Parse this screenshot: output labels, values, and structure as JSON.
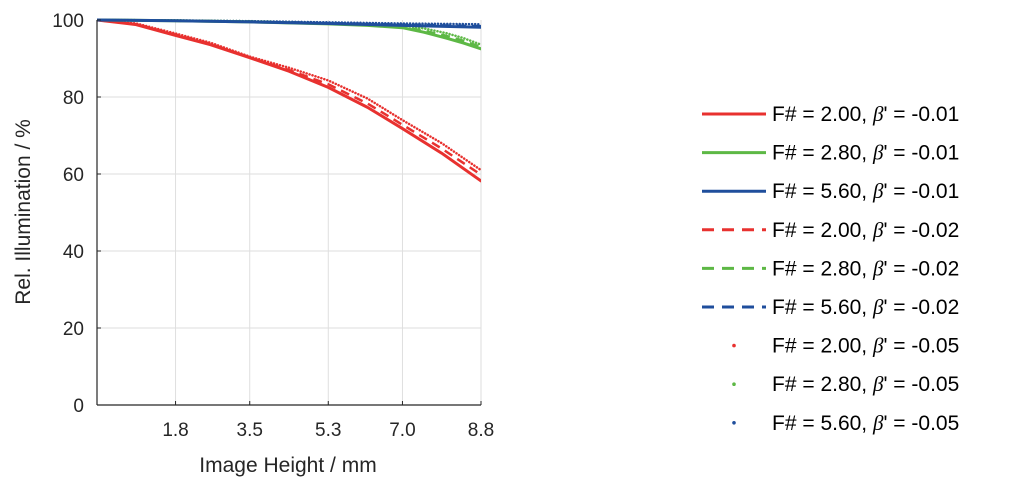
{
  "chart_data": {
    "type": "line",
    "xlabel": "Image Height / mm",
    "ylabel": "Rel. Illumination / %",
    "xlim": [
      0,
      8.8
    ],
    "ylim": [
      0,
      100
    ],
    "x_ticks": [
      1.8,
      3.5,
      5.3,
      7.0,
      8.8
    ],
    "x_tick_labels": [
      "1.8",
      "3.5",
      "5.3",
      "7.0",
      "8.8"
    ],
    "y_ticks": [
      0,
      20,
      40,
      60,
      80,
      100
    ],
    "y_tick_labels": [
      "0",
      "20",
      "40",
      "60",
      "80",
      "100"
    ],
    "grid": true,
    "legend_position": "right",
    "colors": {
      "red": "#e8312f",
      "green": "#5db845",
      "blue": "#1f4e9c"
    },
    "series": [
      {
        "name": "F# = 2.00, β' = -0.01",
        "f_label": "F# = 2.00,",
        "beta_label": "' = -0.01",
        "color": "#e8312f",
        "style": "solid",
        "x": [
          0,
          0.9,
          1.8,
          2.6,
          3.5,
          4.4,
          5.3,
          6.2,
          7.0,
          7.9,
          8.8
        ],
        "y": [
          100,
          98.8,
          96.0,
          93.6,
          90.2,
          86.7,
          82.5,
          77.3,
          71.8,
          65.4,
          58.2
        ]
      },
      {
        "name": "F# = 2.80, β' = -0.01",
        "f_label": "F# = 2.80,",
        "beta_label": "' = -0.01",
        "color": "#5db845",
        "style": "solid",
        "x": [
          0,
          1.8,
          3.5,
          5.3,
          6.2,
          7.0,
          7.5,
          8.0,
          8.4,
          8.8
        ],
        "y": [
          100,
          99.8,
          99.5,
          99.0,
          98.6,
          98.0,
          96.8,
          95.3,
          94.0,
          92.5
        ]
      },
      {
        "name": "F# = 5.60, β' = -0.01",
        "f_label": "F# = 5.60,",
        "beta_label": "' = -0.01",
        "color": "#1f4e9c",
        "style": "solid",
        "x": [
          0,
          1.8,
          3.5,
          5.3,
          7.0,
          8.8
        ],
        "y": [
          100,
          99.8,
          99.5,
          99.1,
          98.6,
          98.1
        ]
      },
      {
        "name": "F# = 2.00, β' = -0.02",
        "f_label": "F# = 2.00,",
        "beta_label": "' = -0.02",
        "color": "#e8312f",
        "style": "dashed",
        "x": [
          0,
          0.9,
          1.8,
          2.6,
          3.5,
          4.4,
          5.3,
          6.2,
          7.0,
          7.9,
          8.8
        ],
        "y": [
          100,
          98.9,
          96.2,
          93.8,
          90.3,
          87.0,
          83.3,
          78.3,
          72.8,
          66.6,
          59.8
        ]
      },
      {
        "name": "F# = 2.80, β' = -0.02",
        "f_label": "F# = 2.80,",
        "beta_label": "' = -0.02",
        "color": "#5db845",
        "style": "dashed",
        "x": [
          0,
          1.8,
          3.5,
          5.3,
          6.2,
          7.0,
          7.5,
          8.0,
          8.4,
          8.8
        ],
        "y": [
          100,
          99.8,
          99.6,
          99.1,
          98.7,
          98.2,
          97.2,
          95.9,
          94.6,
          93.0
        ]
      },
      {
        "name": "F# = 5.60, β' = -0.02",
        "f_label": "F# = 5.60,",
        "beta_label": "' = -0.02",
        "color": "#1f4e9c",
        "style": "dashed",
        "x": [
          0,
          1.8,
          3.5,
          5.3,
          7.0,
          8.8
        ],
        "y": [
          100,
          99.8,
          99.6,
          99.2,
          98.8,
          98.4
        ]
      },
      {
        "name": "F# = 2.00, β' = -0.05",
        "f_label": "F# = 2.00,",
        "beta_label": "' = -0.05",
        "color": "#e8312f",
        "style": "dotted",
        "x": [
          0,
          0.9,
          1.8,
          2.6,
          3.5,
          4.4,
          5.3,
          6.2,
          7.0,
          7.9,
          8.8
        ],
        "y": [
          100,
          99.1,
          96.5,
          94.1,
          90.5,
          87.6,
          84.3,
          79.6,
          74.0,
          68.0,
          61.0
        ]
      },
      {
        "name": "F# = 2.80, β' = -0.05",
        "f_label": "F# = 2.80,",
        "beta_label": "' = -0.05",
        "color": "#5db845",
        "style": "dotted",
        "x": [
          0,
          1.8,
          3.5,
          5.3,
          6.2,
          7.0,
          7.5,
          8.0,
          8.4,
          8.8
        ],
        "y": [
          100,
          99.9,
          99.7,
          99.3,
          99.0,
          98.6,
          97.8,
          96.6,
          95.3,
          93.6
        ]
      },
      {
        "name": "F# = 5.60, β' = -0.05",
        "f_label": "F# = 5.60,",
        "beta_label": "' = -0.05",
        "color": "#1f4e9c",
        "style": "dotted",
        "x": [
          0,
          1.8,
          3.5,
          5.3,
          7.0,
          8.8
        ],
        "y": [
          100,
          99.9,
          99.7,
          99.4,
          99.1,
          98.9
        ]
      }
    ]
  }
}
